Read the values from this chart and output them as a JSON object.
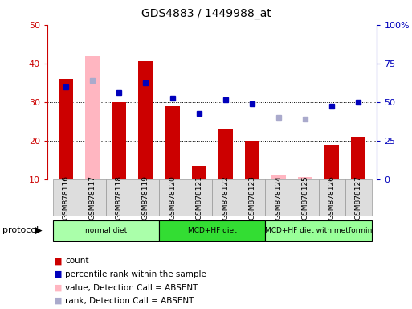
{
  "title": "GDS4883 / 1449988_at",
  "samples": [
    "GSM878116",
    "GSM878117",
    "GSM878118",
    "GSM878119",
    "GSM878120",
    "GSM878121",
    "GSM878122",
    "GSM878123",
    "GSM878124",
    "GSM878125",
    "GSM878126",
    "GSM878127"
  ],
  "count_values": [
    36,
    null,
    30,
    40.5,
    29,
    13.5,
    23,
    20,
    null,
    null,
    19,
    21
  ],
  "count_absent_values": [
    null,
    42,
    null,
    null,
    null,
    null,
    null,
    null,
    11,
    10.5,
    null,
    null
  ],
  "percentile_values": [
    34,
    null,
    32.5,
    35,
    31,
    27,
    30.5,
    29.5,
    null,
    null,
    29,
    30
  ],
  "percentile_absent_values": [
    null,
    35.5,
    null,
    null,
    null,
    null,
    null,
    null,
    26,
    25.5,
    null,
    null
  ],
  "ylim_left": [
    10,
    50
  ],
  "ylim_right": [
    0,
    100
  ],
  "yticks_left": [
    10,
    20,
    30,
    40,
    50
  ],
  "yticks_right": [
    0,
    25,
    50,
    75,
    100
  ],
  "ytick_labels_right": [
    "0",
    "25",
    "50",
    "75",
    "100%"
  ],
  "group_colors": [
    "#AAFFAA",
    "#33DD33",
    "#99FF99"
  ],
  "groups": [
    {
      "label": "normal diet",
      "indices": [
        0,
        1,
        2,
        3
      ]
    },
    {
      "label": "MCD+HF diet",
      "indices": [
        4,
        5,
        6,
        7
      ]
    },
    {
      "label": "MCD+HF diet with metformin",
      "indices": [
        8,
        9,
        10,
        11
      ]
    }
  ],
  "bar_color_red": "#CC0000",
  "bar_color_pink": "#FFB6C1",
  "dot_color_blue": "#0000BB",
  "dot_color_lightblue": "#AAAACC",
  "bar_width": 0.55,
  "left_axis_color": "#CC0000",
  "right_axis_color": "#0000BB",
  "legend_items": [
    {
      "label": "count",
      "color": "#CC0000"
    },
    {
      "label": "percentile rank within the sample",
      "color": "#0000BB"
    },
    {
      "label": "value, Detection Call = ABSENT",
      "color": "#FFB6C1"
    },
    {
      "label": "rank, Detection Call = ABSENT",
      "color": "#AAAACC"
    }
  ]
}
